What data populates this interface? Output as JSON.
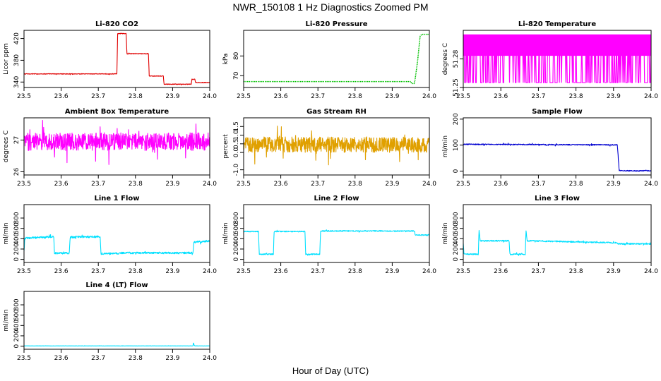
{
  "figure": {
    "title": "NWR_150108  1 Hz Diagnostics Zoomed PM",
    "xlabel": "Hour of Day (UTC)"
  },
  "chart_data": [
    {
      "type": "line",
      "title": "Li-820 CO2",
      "ylabel": "Licor ppm",
      "color": "#e00000",
      "xlim": [
        23.5,
        24.0
      ],
      "ylim": [
        330,
        435
      ],
      "x_ticks": [
        23.5,
        23.6,
        23.7,
        23.8,
        23.9,
        24.0
      ],
      "y_ticks": [
        340,
        380,
        420
      ],
      "series": [
        {
          "style": "noisy",
          "noise": 0.6,
          "x": [
            23.5,
            23.75,
            23.752,
            23.775,
            23.777,
            23.81,
            23.812,
            23.835,
            23.837,
            23.875,
            23.877,
            23.95,
            23.952,
            23.96,
            23.962,
            24.0
          ],
          "y": [
            355,
            355,
            429,
            429,
            392,
            392,
            392,
            392,
            351,
            351,
            336,
            336,
            345,
            345,
            339,
            339
          ]
        }
      ]
    },
    {
      "type": "line",
      "title": "Li-820 Pressure",
      "ylabel": "kPa",
      "color": "#00c000",
      "xlim": [
        23.5,
        24.0
      ],
      "ylim": [
        64,
        93
      ],
      "x_ticks": [
        23.5,
        23.6,
        23.7,
        23.8,
        23.9,
        24.0
      ],
      "y_ticks": [
        70,
        80
      ],
      "series": [
        {
          "style": "dotted-line",
          "x": [
            23.5,
            23.95,
            23.952,
            23.96,
            23.968,
            23.975,
            23.98,
            24.0
          ],
          "y": [
            67,
            67,
            66,
            66,
            77,
            90,
            91,
            91
          ]
        }
      ]
    },
    {
      "type": "line",
      "title": "Li-820 Temperature",
      "ylabel": "degrees C",
      "color": "#ff00ff",
      "xlim": [
        23.5,
        24.0
      ],
      "ylim": [
        51.25,
        51.31
      ],
      "x_ticks": [
        23.5,
        23.6,
        23.7,
        23.8,
        23.9,
        24.0
      ],
      "y_ticks": [
        51.25,
        51.28
      ],
      "series": [
        {
          "style": "binary",
          "x": [
            23.5,
            24.0
          ],
          "y": [
            51.255,
            51.305
          ]
        }
      ]
    },
    {
      "type": "line",
      "title": "Ambient Box Temperature",
      "ylabel": "degrees C",
      "color": "#ff00ff",
      "xlim": [
        23.5,
        24.0
      ],
      "ylim": [
        25.9,
        27.7
      ],
      "x_ticks": [
        23.5,
        23.6,
        23.7,
        23.8,
        23.9,
        24.0
      ],
      "y_ticks": [
        26.0,
        27.0
      ],
      "series": [
        {
          "style": "noisy",
          "noise": 0.28,
          "x": [
            23.5,
            24.0
          ],
          "y": [
            26.95,
            26.95
          ]
        }
      ]
    },
    {
      "type": "line",
      "title": "Gas Stream RH",
      "ylabel": "percent",
      "color": "#e0a000",
      "xlim": [
        23.5,
        24.0
      ],
      "ylim": [
        -1.3,
        2.0
      ],
      "x_ticks": [
        23.5,
        23.6,
        23.7,
        23.8,
        23.9,
        24.0
      ],
      "y_ticks": [
        -1.0,
        0.0,
        0.5,
        1.0,
        1.5
      ],
      "series": [
        {
          "style": "noisy",
          "noise": 0.45,
          "x": [
            23.5,
            24.0
          ],
          "y": [
            0.45,
            0.45
          ]
        }
      ]
    },
    {
      "type": "line",
      "title": "Sample Flow",
      "ylabel": "ml/min",
      "color": "#0000d0",
      "xlim": [
        23.5,
        24.0
      ],
      "ylim": [
        -15,
        205
      ],
      "x_ticks": [
        23.5,
        23.6,
        23.7,
        23.8,
        23.9,
        24.0
      ],
      "y_ticks": [
        0,
        100,
        200
      ],
      "series": [
        {
          "style": "noisy",
          "noise": 2,
          "x": [
            23.5,
            23.91,
            23.915,
            23.93,
            24.0
          ],
          "y": [
            103,
            101,
            3,
            1,
            1
          ]
        }
      ]
    },
    {
      "type": "line",
      "title": "Line 1 Flow",
      "ylabel": "ml/min",
      "color": "#00e0ff",
      "xlim": [
        23.5,
        24.0
      ],
      "ylim": [
        -60,
        1060
      ],
      "x_ticks": [
        23.5,
        23.6,
        23.7,
        23.8,
        23.9,
        24.0
      ],
      "y_ticks": [
        0,
        200,
        400,
        600,
        800
      ],
      "series": [
        {
          "style": "noisy",
          "noise": 18,
          "x": [
            23.5,
            23.502,
            23.58,
            23.582,
            23.622,
            23.624,
            23.705,
            23.707,
            23.755,
            23.757,
            23.955,
            23.957,
            24.0
          ],
          "y": [
            150,
            410,
            440,
            120,
            120,
            430,
            440,
            110,
            115,
            125,
            125,
            330,
            360
          ]
        }
      ]
    },
    {
      "type": "line",
      "title": "Line 2 Flow",
      "ylabel": "ml/min",
      "color": "#00e0ff",
      "xlim": [
        23.5,
        24.0
      ],
      "ylim": [
        -60,
        1060
      ],
      "x_ticks": [
        23.5,
        23.6,
        23.7,
        23.8,
        23.9,
        24.0
      ],
      "y_ticks": [
        0,
        200,
        400,
        600,
        800
      ],
      "series": [
        {
          "style": "noisy",
          "noise": 10,
          "x": [
            23.5,
            23.54,
            23.542,
            23.58,
            23.582,
            23.665,
            23.667,
            23.705,
            23.707,
            23.96,
            23.962,
            24.0
          ],
          "y": [
            540,
            540,
            100,
            100,
            540,
            540,
            100,
            100,
            550,
            550,
            470,
            470
          ]
        }
      ]
    },
    {
      "type": "line",
      "title": "Line 3 Flow",
      "ylabel": "ml/min",
      "color": "#00e0ff",
      "xlim": [
        23.5,
        24.0
      ],
      "ylim": [
        -60,
        1060
      ],
      "x_ticks": [
        23.5,
        23.6,
        23.7,
        23.8,
        23.9,
        24.0
      ],
      "y_ticks": [
        0,
        200,
        400,
        600,
        800
      ],
      "series": [
        {
          "style": "noisy",
          "noise": 12,
          "x": [
            23.5,
            23.502,
            23.54,
            23.542,
            23.545,
            23.622,
            23.624,
            23.665,
            23.667,
            23.67,
            23.91,
            23.912,
            24.0
          ],
          "y": [
            300,
            100,
            100,
            580,
            360,
            360,
            100,
            100,
            560,
            360,
            320,
            300,
            300
          ]
        }
      ]
    },
    {
      "type": "line",
      "title": "Line 4 (LT) Flow",
      "ylabel": "ml/min",
      "color": "#00e0ff",
      "xlim": [
        23.5,
        24.0
      ],
      "ylim": [
        -60,
        1060
      ],
      "x_ticks": [
        23.5,
        23.6,
        23.7,
        23.8,
        23.9,
        24.0
      ],
      "y_ticks": [
        0,
        200,
        400,
        600,
        800
      ],
      "series": [
        {
          "style": "noisy",
          "noise": 2,
          "x": [
            23.5,
            23.955,
            23.956,
            23.958,
            23.96,
            24.0
          ],
          "y": [
            5,
            5,
            70,
            20,
            5,
            5
          ]
        }
      ]
    }
  ]
}
